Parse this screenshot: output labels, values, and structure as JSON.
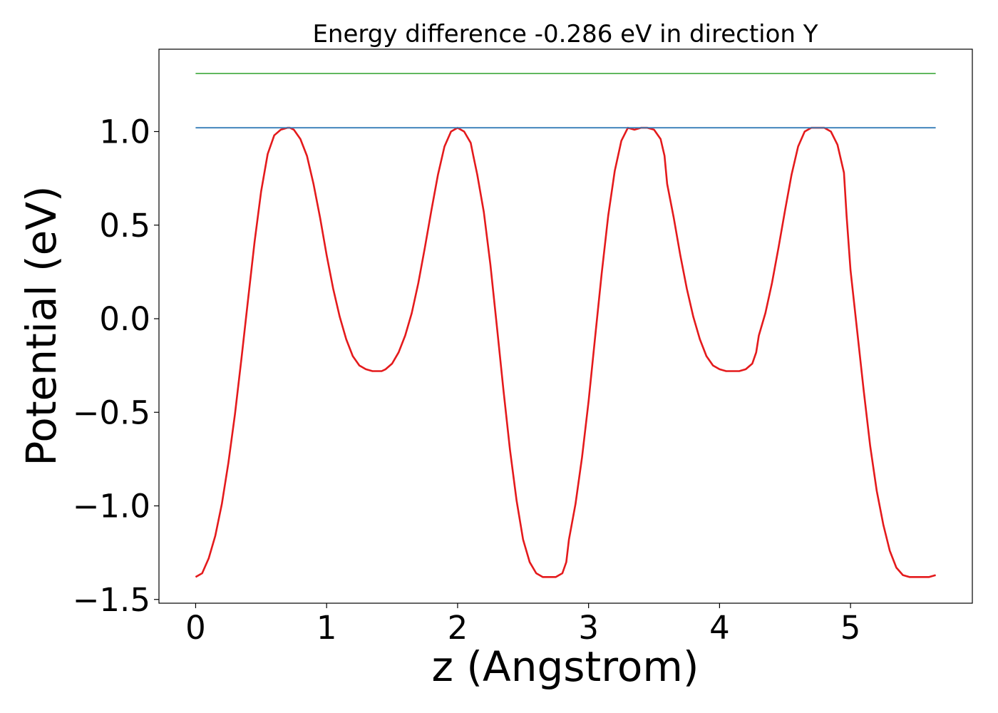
{
  "chart_data": {
    "type": "line",
    "title": "Energy difference -0.286 eV in direction Y",
    "xlabel": "z (Angstrom)",
    "ylabel": "Potential (eV)",
    "xlim": [
      -0.28,
      5.93
    ],
    "ylim": [
      -1.52,
      1.44
    ],
    "x_ticks": [
      0,
      1,
      2,
      3,
      4,
      5
    ],
    "y_ticks": [
      -1.5,
      -1.0,
      -0.5,
      0.0,
      0.5,
      1.0
    ],
    "x_tick_labels": [
      "0",
      "1",
      "2",
      "3",
      "4",
      "5"
    ],
    "y_tick_labels": [
      "−1.5",
      "−1.0",
      "−0.5",
      "0.0",
      "0.5",
      "1.0"
    ],
    "grid": false,
    "series": [
      {
        "color": "#e41a1c",
        "x": [
          0.0,
          0.05,
          0.1,
          0.15,
          0.2,
          0.25,
          0.3,
          0.35,
          0.4,
          0.45,
          0.5,
          0.55,
          0.6,
          0.65,
          0.7,
          0.72,
          0.75,
          0.8,
          0.85,
          0.9,
          0.95,
          1.0,
          1.05,
          1.1,
          1.15,
          1.2,
          1.25,
          1.3,
          1.35,
          1.4,
          1.42,
          1.45,
          1.5,
          1.55,
          1.6,
          1.65,
          1.7,
          1.75,
          1.8,
          1.85,
          1.9,
          1.95,
          2.0,
          2.05,
          2.1,
          2.12,
          2.15,
          2.2,
          2.25,
          2.3,
          2.35,
          2.4,
          2.45,
          2.5,
          2.55,
          2.6,
          2.65,
          2.7,
          2.75,
          2.8,
          2.83,
          2.85,
          2.9,
          2.95,
          3.0,
          3.05,
          3.1,
          3.15,
          3.2,
          3.25,
          3.3,
          3.35,
          3.4,
          3.45,
          3.5,
          3.55,
          3.58,
          3.6,
          3.65,
          3.7,
          3.75,
          3.8,
          3.85,
          3.9,
          3.95,
          4.0,
          4.05,
          4.1,
          4.15,
          4.2,
          4.25,
          4.28,
          4.3,
          4.35,
          4.4,
          4.45,
          4.5,
          4.55,
          4.6,
          4.65,
          4.7,
          4.75,
          4.8,
          4.85,
          4.9,
          4.95,
          4.97,
          5.0,
          5.05,
          5.1,
          5.15,
          5.2,
          5.25,
          5.3,
          5.35,
          5.4,
          5.45,
          5.5,
          5.55,
          5.6,
          5.65
        ],
        "y": [
          -1.38,
          -1.36,
          -1.28,
          -1.16,
          -0.99,
          -0.77,
          -0.51,
          -0.21,
          0.1,
          0.41,
          0.68,
          0.88,
          0.98,
          1.01,
          1.02,
          1.02,
          1.01,
          0.96,
          0.87,
          0.72,
          0.54,
          0.34,
          0.16,
          0.01,
          -0.11,
          -0.2,
          -0.25,
          -0.27,
          -0.28,
          -0.28,
          -0.28,
          -0.27,
          -0.24,
          -0.18,
          -0.09,
          0.03,
          0.19,
          0.38,
          0.58,
          0.77,
          0.92,
          1.0,
          1.02,
          1.0,
          0.94,
          0.87,
          0.77,
          0.57,
          0.29,
          -0.04,
          -0.38,
          -0.7,
          -0.97,
          -1.18,
          -1.3,
          -1.36,
          -1.38,
          -1.38,
          -1.38,
          -1.36,
          -1.3,
          -1.18,
          -0.99,
          -0.74,
          -0.44,
          -0.1,
          0.24,
          0.55,
          0.79,
          0.95,
          1.02,
          1.01,
          1.02,
          1.02,
          1.01,
          0.96,
          0.87,
          0.72,
          0.54,
          0.34,
          0.16,
          0.01,
          -0.11,
          -0.2,
          -0.25,
          -0.27,
          -0.28,
          -0.28,
          -0.28,
          -0.27,
          -0.24,
          -0.18,
          -0.09,
          0.03,
          0.19,
          0.38,
          0.58,
          0.77,
          0.92,
          1.0,
          1.02,
          1.02,
          1.02,
          1.0,
          0.93,
          0.78,
          0.55,
          0.26,
          -0.06,
          -0.38,
          -0.68,
          -0.92,
          -1.1,
          -1.24,
          -1.33,
          -1.37,
          -1.38,
          -1.38,
          -1.38,
          -1.38,
          -1.37
        ]
      },
      {
        "color": "#377eb8",
        "x": [
          0.0,
          5.65
        ],
        "y": [
          1.02,
          1.02
        ]
      },
      {
        "color": "#4daf4a",
        "x": [
          0.0,
          5.65
        ],
        "y": [
          1.31,
          1.31
        ]
      }
    ]
  }
}
